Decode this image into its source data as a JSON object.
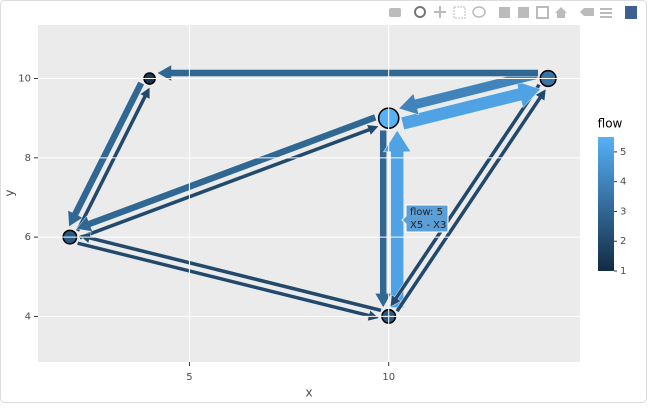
{
  "chart_data": {
    "type": "network",
    "xlabel": "x",
    "ylabel": "y",
    "xlim": [
      1.2,
      14.8
    ],
    "ylim": [
      2.85,
      11.35
    ],
    "xticks": [
      5,
      10
    ],
    "yticks": [
      4,
      6,
      8,
      10
    ],
    "grid": true,
    "colorscale": [
      "#132B43",
      "#56B1F7"
    ],
    "colorbar": {
      "title": "flow",
      "lim": [
        1,
        5.5
      ],
      "ticks": [
        1,
        2,
        3,
        4,
        5
      ]
    },
    "nodes": [
      {
        "x": 2,
        "y": 6,
        "value": 2.5
      },
      {
        "x": 4,
        "y": 10,
        "value": 1.4
      },
      {
        "x": 10,
        "y": 9,
        "value": 5.5
      },
      {
        "x": 14,
        "y": 10,
        "value": 3.5
      },
      {
        "x": 10,
        "y": 4,
        "value": 2.5
      }
    ],
    "edges": [
      {
        "from": 1,
        "to": 0,
        "flow": 3
      },
      {
        "from": 0,
        "to": 1,
        "flow": 2
      },
      {
        "from": 2,
        "to": 0,
        "flow": 3
      },
      {
        "from": 0,
        "to": 2,
        "flow": 2
      },
      {
        "from": 0,
        "to": 4,
        "flow": 2
      },
      {
        "from": 4,
        "to": 0,
        "flow": 2
      },
      {
        "from": 2,
        "to": 4,
        "flow": 3
      },
      {
        "from": 4,
        "to": 2,
        "flow": 5
      },
      {
        "from": 4,
        "to": 3,
        "flow": 2
      },
      {
        "from": 3,
        "to": 4,
        "flow": 2
      },
      {
        "from": 2,
        "to": 3,
        "flow": 5
      },
      {
        "from": 3,
        "to": 2,
        "flow": 4
      },
      {
        "from": 3,
        "to": 1,
        "flow": 3
      }
    ],
    "tooltip": {
      "lines": [
        "flow: 5",
        "X5 - X3"
      ]
    }
  }
}
